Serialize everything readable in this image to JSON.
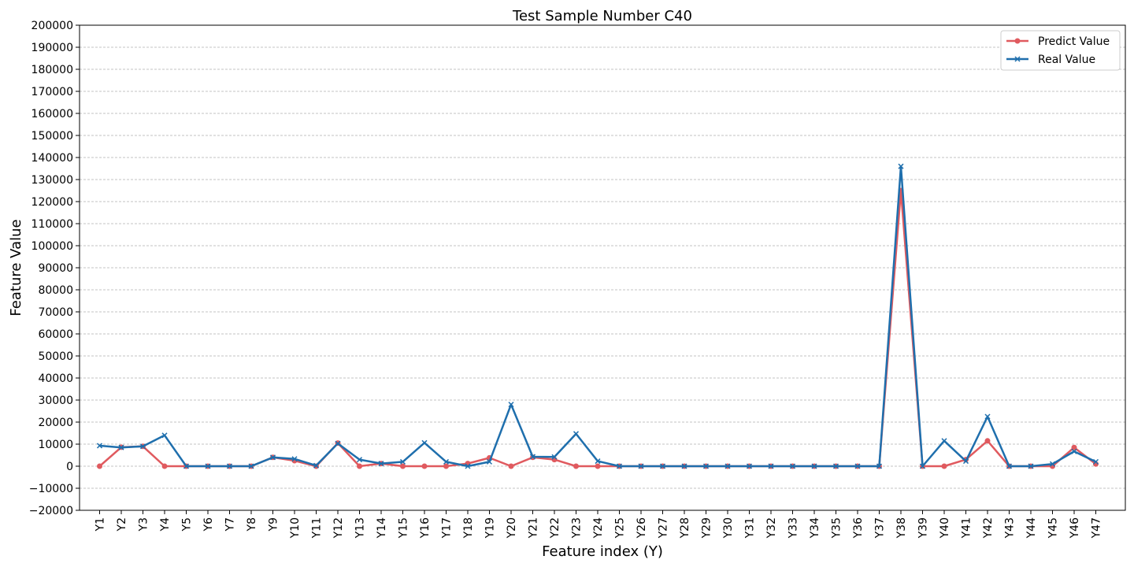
{
  "chart_data": {
    "type": "line",
    "title": "Test Sample Number C40",
    "xlabel": "Feature index (Y)",
    "ylabel": "Feature Value",
    "ylim": [
      -20000,
      200000
    ],
    "ytick_step": 10000,
    "grid": "horizontal dashed",
    "legend_position": "top-right",
    "categories": [
      "Y1",
      "Y2",
      "Y3",
      "Y4",
      "Y5",
      "Y6",
      "Y7",
      "Y8",
      "Y9",
      "Y10",
      "Y11",
      "Y12",
      "Y13",
      "Y14",
      "Y15",
      "Y16",
      "Y17",
      "Y18",
      "Y19",
      "Y20",
      "Y21",
      "Y22",
      "Y23",
      "Y24",
      "Y25",
      "Y26",
      "Y27",
      "Y28",
      "Y29",
      "Y30",
      "Y31",
      "Y32",
      "Y33",
      "Y34",
      "Y35",
      "Y36",
      "Y37",
      "Y38",
      "Y39",
      "Y40",
      "Y41",
      "Y42",
      "Y43",
      "Y44",
      "Y45",
      "Y46",
      "Y47"
    ],
    "series": [
      {
        "name": "Predict Value",
        "color": "#e05a5f",
        "marker": "circle",
        "values": [
          0,
          8600,
          9000,
          0,
          0,
          0,
          0,
          0,
          4000,
          2500,
          0,
          10500,
          0,
          1200,
          0,
          0,
          0,
          1200,
          3800,
          0,
          4000,
          3000,
          0,
          0,
          0,
          0,
          0,
          0,
          0,
          0,
          0,
          0,
          0,
          0,
          0,
          0,
          0,
          125000,
          0,
          0,
          3000,
          11500,
          0,
          0,
          0,
          8500,
          1000
        ]
      },
      {
        "name": "Real Value",
        "color": "#1f6fad",
        "marker": "x",
        "values": [
          9300,
          8500,
          9000,
          14000,
          0,
          0,
          0,
          0,
          4000,
          3300,
          300,
          10300,
          3000,
          1200,
          2000,
          10600,
          2000,
          0,
          2000,
          28000,
          4300,
          4200,
          14700,
          2300,
          0,
          0,
          0,
          0,
          0,
          0,
          0,
          0,
          0,
          0,
          0,
          0,
          0,
          136000,
          0,
          11500,
          2300,
          22500,
          0,
          0,
          1000,
          6700,
          2000
        ]
      }
    ]
  }
}
